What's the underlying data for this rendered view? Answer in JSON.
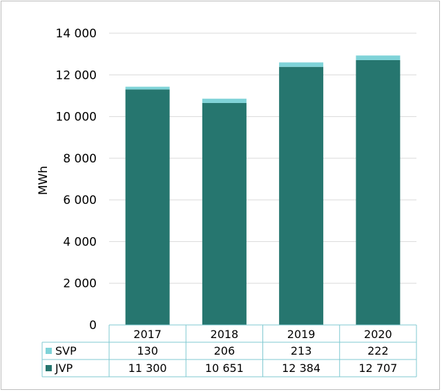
{
  "chart_data": {
    "type": "bar",
    "stacked": true,
    "categories": [
      "2017",
      "2018",
      "2019",
      "2020"
    ],
    "series": [
      {
        "name": "JVP",
        "values": [
          11300,
          10651,
          12384,
          12707
        ],
        "labels": [
          "11 300",
          "10 651",
          "12 384",
          "12 707"
        ],
        "color": "#26766f"
      },
      {
        "name": "SVP",
        "values": [
          130,
          206,
          213,
          222
        ],
        "labels": [
          "130",
          "206",
          "213",
          "222"
        ],
        "color": "#7fd3d8"
      }
    ],
    "ylabel": "MWh",
    "ylim": [
      0,
      14000
    ],
    "yticks": [
      0,
      2000,
      4000,
      6000,
      8000,
      10000,
      12000,
      14000
    ],
    "ytick_labels": [
      "0",
      "2 000",
      "4 000",
      "6 000",
      "8 000",
      "10 000",
      "12 000",
      "14 000"
    ],
    "grid": true,
    "legend": "data table below plot"
  }
}
